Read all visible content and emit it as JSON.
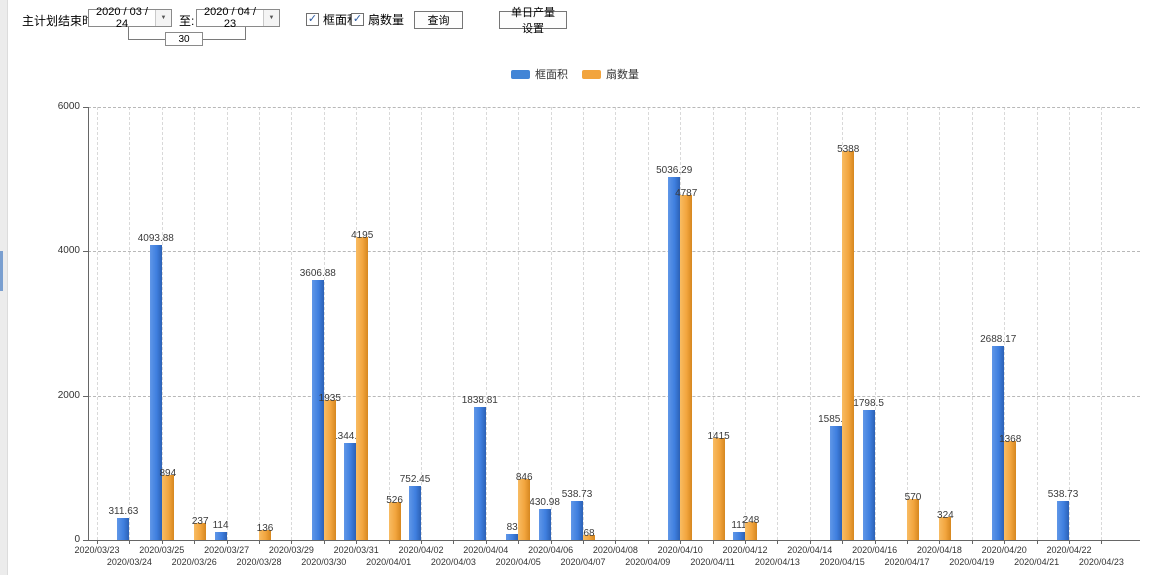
{
  "toolbar": {
    "label": "主计划结束时间:",
    "date_from": "2020 / 03 / 24",
    "to_label": "至:",
    "date_to": "2020 / 04 / 23",
    "interval_days": "30",
    "checkbox_frame_area": "框面积",
    "checkbox_fan_count": "扇数量",
    "query_button": "查询",
    "daily_output_button": "单日产量设置"
  },
  "icons": {
    "dropdown": "▼",
    "check": "✓"
  },
  "legend": {
    "items": [
      {
        "label": "框面积",
        "color": "#4285d6"
      },
      {
        "label": "扇数量",
        "color": "#f2a43d"
      }
    ]
  },
  "chart_data": {
    "type": "bar",
    "title": "",
    "xlabel": "",
    "ylabel": "",
    "ylim": [
      0,
      6000
    ],
    "yticks": [
      0,
      2000,
      4000,
      6000
    ],
    "grid": true,
    "legend_position": "top",
    "categories": [
      "2020/03/23",
      "2020/03/24",
      "2020/03/25",
      "2020/03/26",
      "2020/03/27",
      "2020/03/28",
      "2020/03/29",
      "2020/03/30",
      "2020/03/31",
      "2020/04/01",
      "2020/04/02",
      "2020/04/03",
      "2020/04/04",
      "2020/04/05",
      "2020/04/06",
      "2020/04/07",
      "2020/04/08",
      "2020/04/09",
      "2020/04/10",
      "2020/04/11",
      "2020/04/12",
      "2020/04/13",
      "2020/04/14",
      "2020/04/15",
      "2020/04/16",
      "2020/04/17",
      "2020/04/18",
      "2020/04/19",
      "2020/04/20",
      "2020/04/21",
      "2020/04/22",
      "2020/04/23"
    ],
    "series": [
      {
        "name": "框面积",
        "color": "#4080df",
        "values": [
          null,
          311.63,
          4093.88,
          null,
          114,
          null,
          null,
          3606.88,
          1344.95,
          null,
          752.45,
          null,
          1838.81,
          83,
          430.98,
          538.73,
          null,
          null,
          5036.29,
          null,
          111,
          null,
          null,
          1585.96,
          1798.5,
          null,
          null,
          null,
          2688.17,
          null,
          538.73,
          null
        ]
      },
      {
        "name": "扇数量",
        "color": "#f2a43d",
        "values": [
          null,
          null,
          894,
          237,
          null,
          136,
          null,
          1935,
          4195,
          526,
          null,
          null,
          null,
          846,
          null,
          68,
          null,
          null,
          4787,
          1415,
          248,
          null,
          null,
          5388,
          null,
          570,
          324,
          null,
          1368,
          null,
          null,
          null
        ]
      }
    ]
  }
}
